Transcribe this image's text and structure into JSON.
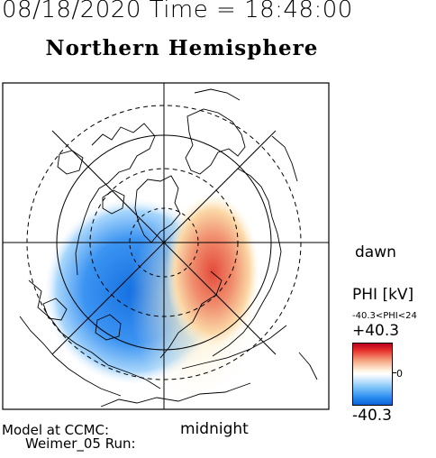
{
  "header": {
    "datetime": "08/18/2020 Time = 18:48:00",
    "hemisphere": "Northern Hemisphere"
  },
  "map": {
    "labels": {
      "dawn": "dawn",
      "midnight": "midnight"
    },
    "colors": {
      "positive": "#e8332e",
      "negative": "#1e7ee8",
      "frame": "#000000"
    }
  },
  "legend": {
    "title": "PHI [kV]",
    "range_text": "-40.3<PHI<24",
    "max_label": "+40.3",
    "min_label": "-40.3",
    "zero_label": "0"
  },
  "footer": {
    "model_line": "Model at CCMC:",
    "run_line": "Weimer_05 Run:"
  }
}
